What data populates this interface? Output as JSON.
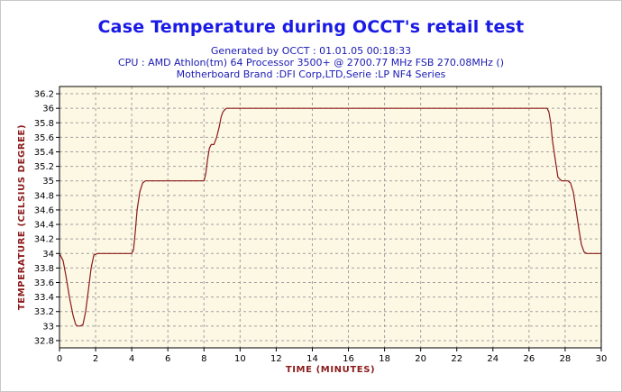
{
  "header": {
    "title": "Case Temperature during OCCT's retail test",
    "generated": "Generated by OCCT : 01.01.05 00:18:33",
    "cpu": "CPU : AMD Athlon(tm) 64 Processor 3500+ @ 2700.77 MHz FSB 270.08MHz ()",
    "motherboard": "Motherboard Brand :DFI Corp,LTD,Serie :LP NF4 Series"
  },
  "colors": {
    "title": "#1a1ae6",
    "subtitle": "#1a1ab4",
    "plot_background": "#fdf8e4",
    "grid": "#a0a0a0",
    "series_line": "#8b1a1a",
    "axis_label": "#8b1a1a"
  },
  "chart_data": {
    "type": "line",
    "title": "Case Temperature during OCCT's retail test",
    "xlabel": "TIME (MINUTES)",
    "ylabel": "TEMPERATURE (CELSIUS DEGREE)",
    "xlim": [
      0,
      30
    ],
    "ylim": [
      32.7,
      36.3
    ],
    "x_ticks": [
      0,
      2,
      4,
      6,
      8,
      10,
      12,
      14,
      16,
      18,
      20,
      22,
      24,
      26,
      28,
      30
    ],
    "y_ticks": [
      32.8,
      33,
      33.2,
      33.4,
      33.6,
      33.8,
      34,
      34.2,
      34.4,
      34.6,
      34.8,
      35,
      35.2,
      35.4,
      35.6,
      35.8,
      36,
      36.2
    ],
    "grid": true,
    "legend": "none",
    "series": [
      {
        "x": [
          0,
          0.2,
          0.35,
          0.55,
          0.75,
          0.9,
          1.0,
          1.15,
          1.3,
          1.45,
          1.6,
          1.75,
          1.9,
          2.1,
          2.4,
          3.0,
          3.6,
          4.0,
          4.1,
          4.2,
          4.3,
          4.45,
          4.6,
          4.75,
          5.0,
          6.0,
          7.0,
          8.0,
          8.1,
          8.2,
          8.3,
          8.4,
          8.55,
          8.7,
          8.85,
          8.95,
          9.05,
          9.15,
          9.25,
          9.4,
          9.6,
          10,
          12,
          14,
          16,
          18,
          20,
          22,
          24,
          26,
          27.0,
          27.1,
          27.2,
          27.3,
          27.45,
          27.6,
          27.8,
          28.0,
          28.15,
          28.3,
          28.45,
          28.6,
          28.75,
          28.9,
          29.05,
          29.2,
          29.5,
          30
        ],
        "y": [
          34.0,
          33.9,
          33.7,
          33.4,
          33.15,
          33.02,
          33.0,
          33.0,
          33.02,
          33.2,
          33.5,
          33.8,
          33.98,
          34.0,
          34.0,
          34.0,
          34.0,
          34.0,
          34.05,
          34.3,
          34.6,
          34.85,
          34.97,
          35.0,
          35.0,
          35.0,
          35.0,
          35.0,
          35.1,
          35.3,
          35.45,
          35.5,
          35.5,
          35.6,
          35.75,
          35.88,
          35.95,
          35.98,
          36.0,
          36.0,
          36.0,
          36.0,
          36.0,
          36.0,
          36.0,
          36.0,
          36.0,
          36.0,
          36.0,
          36.0,
          36.0,
          35.95,
          35.8,
          35.55,
          35.3,
          35.05,
          35.0,
          35.0,
          35.0,
          34.97,
          34.85,
          34.6,
          34.35,
          34.12,
          34.02,
          34.0,
          34.0,
          34.0
        ]
      }
    ]
  }
}
